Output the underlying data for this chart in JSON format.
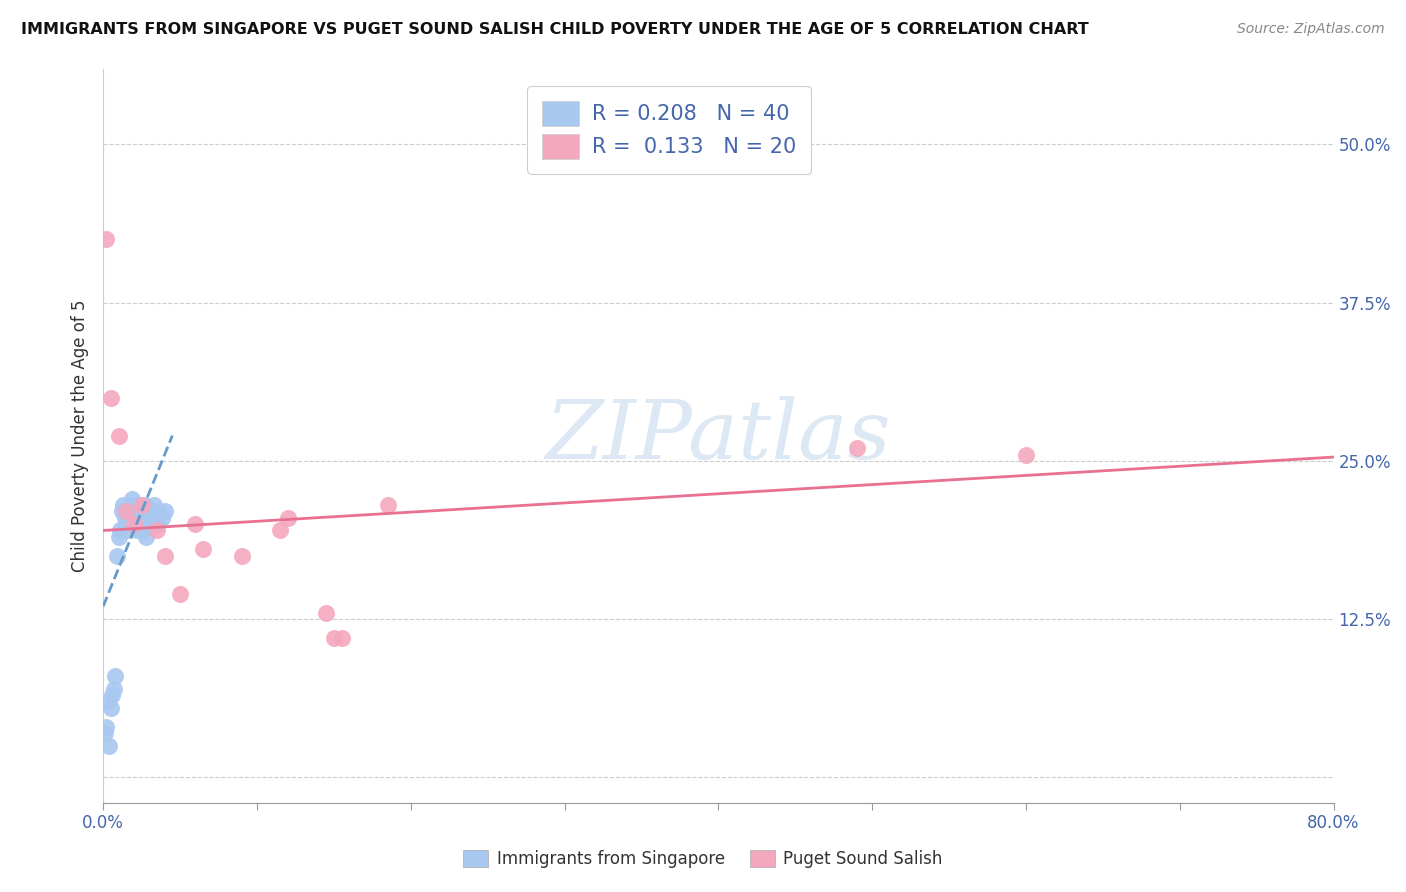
{
  "title": "IMMIGRANTS FROM SINGAPORE VS PUGET SOUND SALISH CHILD POVERTY UNDER THE AGE OF 5 CORRELATION CHART",
  "source": "Source: ZipAtlas.com",
  "xlabel_blue": "Immigrants from Singapore",
  "xlabel_pink": "Puget Sound Salish",
  "ylabel": "Child Poverty Under the Age of 5",
  "xlim": [
    0,
    0.8
  ],
  "ylim": [
    -0.02,
    0.56
  ],
  "xticks": [
    0.0,
    0.1,
    0.2,
    0.3,
    0.4,
    0.5,
    0.6,
    0.7,
    0.8
  ],
  "xticklabels": [
    "0.0%",
    "",
    "",
    "",
    "",
    "",
    "",
    "",
    "80.0%"
  ],
  "yticks": [
    0.0,
    0.125,
    0.25,
    0.375,
    0.5
  ],
  "yticklabels": [
    "",
    "12.5%",
    "25.0%",
    "37.5%",
    "50.0%"
  ],
  "R_blue": 0.208,
  "N_blue": 40,
  "R_pink": 0.133,
  "N_pink": 20,
  "blue_color": "#a8c8f0",
  "pink_color": "#f4a8be",
  "blue_line_color": "#6699cc",
  "pink_line_color": "#e87090",
  "tick_color": "#4466aa",
  "watermark_color": "#dde8f5",
  "blue_scatter_x": [
    0.001,
    0.002,
    0.003,
    0.004,
    0.005,
    0.006,
    0.007,
    0.008,
    0.009,
    0.01,
    0.011,
    0.012,
    0.013,
    0.014,
    0.015,
    0.016,
    0.017,
    0.018,
    0.019,
    0.02,
    0.021,
    0.022,
    0.022,
    0.023,
    0.024,
    0.025,
    0.026,
    0.027,
    0.028,
    0.028,
    0.029,
    0.03,
    0.031,
    0.032,
    0.033,
    0.034,
    0.035,
    0.036,
    0.038,
    0.04
  ],
  "blue_scatter_y": [
    0.035,
    0.04,
    0.06,
    0.025,
    0.055,
    0.065,
    0.07,
    0.08,
    0.175,
    0.19,
    0.195,
    0.21,
    0.215,
    0.205,
    0.2,
    0.21,
    0.195,
    0.215,
    0.22,
    0.2,
    0.2,
    0.215,
    0.195,
    0.205,
    0.21,
    0.2,
    0.195,
    0.215,
    0.21,
    0.19,
    0.205,
    0.2,
    0.21,
    0.2,
    0.215,
    0.205,
    0.2,
    0.21,
    0.205,
    0.21
  ],
  "pink_scatter_x": [
    0.002,
    0.005,
    0.01,
    0.015,
    0.02,
    0.025,
    0.035,
    0.04,
    0.05,
    0.06,
    0.065,
    0.09,
    0.115,
    0.12,
    0.145,
    0.15,
    0.155,
    0.185,
    0.49,
    0.6
  ],
  "pink_scatter_y": [
    0.425,
    0.3,
    0.27,
    0.21,
    0.2,
    0.215,
    0.195,
    0.175,
    0.145,
    0.2,
    0.18,
    0.175,
    0.195,
    0.205,
    0.13,
    0.11,
    0.11,
    0.215,
    0.26,
    0.255
  ],
  "blue_trend_x": [
    0.0,
    0.045
  ],
  "blue_trend_y_start": 0.135,
  "blue_trend_y_end": 0.27,
  "pink_trend_x": [
    0.0,
    0.8
  ],
  "pink_trend_y_start": 0.195,
  "pink_trend_y_end": 0.253
}
